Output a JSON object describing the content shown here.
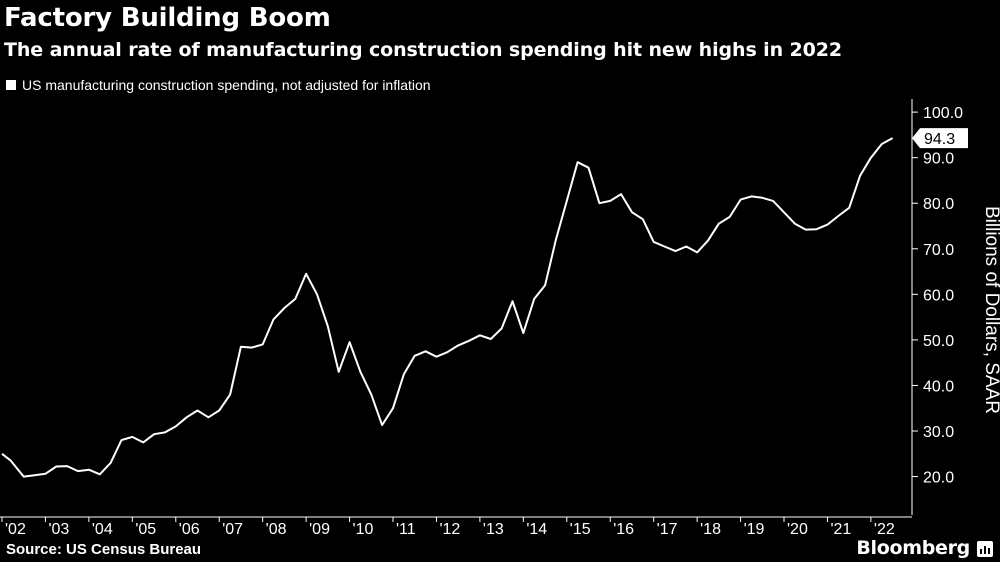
{
  "header": {
    "title": "Factory Building Boom",
    "subtitle": "The annual rate of manufacturing construction spending hit new highs in 2022"
  },
  "legend": {
    "label": "US manufacturing construction spending, not adjusted for inflation"
  },
  "footer": {
    "source": "Source: US Census Bureau",
    "brand": "Bloomberg"
  },
  "colors": {
    "background": "#000000",
    "line": "#ffffff",
    "text": "#ffffff",
    "callout_text": "#000000"
  },
  "chart_data": {
    "type": "line",
    "title": "Factory Building Boom",
    "subtitle": "The annual rate of manufacturing construction spending hit new highs in 2022",
    "ylabel": "Billions of Dollars, SAAR",
    "xlabel": "",
    "ylim": [
      12,
      102
    ],
    "xlim": [
      2002.0,
      2022.9
    ],
    "y_ticks": [
      "20.0",
      "30.0",
      "40.0",
      "50.0",
      "60.0",
      "70.0",
      "80.0",
      "90.0",
      "100.0"
    ],
    "y_tick_values": [
      20,
      30,
      40,
      50,
      60,
      70,
      80,
      90,
      100
    ],
    "x_tick_labels": [
      "'02",
      "'03",
      "'04",
      "'05",
      "'06",
      "'07",
      "'08",
      "'09",
      "'10",
      "'11",
      "'12",
      "'13",
      "'14",
      "'15",
      "'16",
      "'17",
      "'18",
      "'19",
      "'20",
      "'21",
      "'22"
    ],
    "x_tick_values": [
      2002,
      2003,
      2004,
      2005,
      2006,
      2007,
      2008,
      2009,
      2010,
      2011,
      2012,
      2013,
      2014,
      2015,
      2016,
      2017,
      2018,
      2019,
      2020,
      2021,
      2022
    ],
    "last_value_label": "94.3",
    "last_value": 94.3,
    "grid": false,
    "y_axis_position": "right",
    "series": [
      {
        "name": "US manufacturing construction spending, not adjusted for inflation",
        "x": [
          2002.0,
          2002.2,
          2002.5,
          2002.75,
          2003.0,
          2003.25,
          2003.5,
          2003.75,
          2004.0,
          2004.25,
          2004.5,
          2004.75,
          2005.0,
          2005.25,
          2005.5,
          2005.75,
          2006.0,
          2006.25,
          2006.5,
          2006.75,
          2007.0,
          2007.25,
          2007.5,
          2007.75,
          2008.0,
          2008.25,
          2008.5,
          2008.75,
          2009.0,
          2009.25,
          2009.5,
          2009.75,
          2010.0,
          2010.25,
          2010.5,
          2010.75,
          2011.0,
          2011.25,
          2011.5,
          2011.75,
          2012.0,
          2012.25,
          2012.5,
          2012.75,
          2013.0,
          2013.25,
          2013.5,
          2013.75,
          2014.0,
          2014.25,
          2014.5,
          2014.75,
          2015.0,
          2015.25,
          2015.5,
          2015.75,
          2016.0,
          2016.25,
          2016.5,
          2016.75,
          2017.0,
          2017.25,
          2017.5,
          2017.75,
          2018.0,
          2018.25,
          2018.5,
          2018.75,
          2019.0,
          2019.25,
          2019.5,
          2019.75,
          2020.0,
          2020.25,
          2020.5,
          2020.75,
          2021.0,
          2021.25,
          2021.5,
          2021.75,
          2022.0,
          2022.25,
          2022.5
        ],
        "y": [
          25.0,
          23.5,
          20.0,
          20.3,
          20.6,
          22.2,
          22.3,
          21.2,
          21.5,
          20.5,
          23.0,
          28.0,
          28.7,
          27.5,
          29.3,
          29.7,
          31.0,
          33.0,
          34.5,
          33.0,
          34.5,
          38.0,
          48.5,
          48.3,
          49.0,
          54.5,
          57.0,
          59.0,
          64.5,
          60.0,
          53.0,
          43.0,
          49.5,
          43.0,
          38.0,
          31.3,
          35.0,
          42.5,
          46.5,
          47.5,
          46.3,
          47.3,
          48.8,
          49.8,
          51.0,
          50.2,
          52.5,
          58.5,
          51.5,
          59.0,
          62.0,
          72.0,
          80.5,
          89.0,
          87.8,
          80.0,
          80.5,
          82.0,
          78.0,
          76.5,
          71.5,
          70.5,
          69.5,
          70.5,
          69.2,
          71.8,
          75.5,
          77.0,
          80.8,
          81.5,
          81.2,
          80.5,
          78.0,
          75.5,
          74.2,
          74.3,
          75.3,
          77.2,
          79.0,
          86.0,
          90.0,
          93.0,
          94.3
        ]
      }
    ]
  }
}
